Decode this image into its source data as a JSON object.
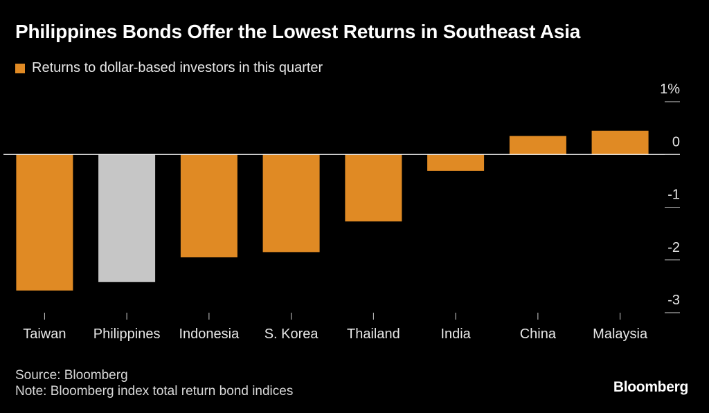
{
  "title": "Philippines Bonds Offer the Lowest Returns in Southeast Asia",
  "legend_label": "Returns to dollar-based investors in this quarter",
  "source": "Source: Bloomberg",
  "note": "Note: Bloomberg index total return bond indices",
  "logo": "Bloomberg",
  "colors": {
    "bar": "#e08a24",
    "highlight": "#c6c6c6",
    "axis": "#ffffff",
    "text": "#e6e6e6"
  },
  "chart_data": {
    "type": "bar",
    "title": "Philippines Bonds Offer the Lowest Returns in Southeast Asia",
    "xlabel": "",
    "ylabel": "",
    "categories": [
      "Taiwan",
      "Philippines",
      "Indonesia",
      "S. Korea",
      "Thailand",
      "India",
      "China",
      "Malaysia"
    ],
    "series": [
      {
        "name": "Returns to dollar-based investors in this quarter",
        "values": [
          -2.58,
          -2.42,
          -1.95,
          -1.85,
          -1.27,
          -0.31,
          0.35,
          0.45
        ]
      }
    ],
    "highlight": "Philippines",
    "ylim": [
      -3,
      1
    ],
    "yticks": [
      1,
      0,
      -1,
      -2,
      -3
    ],
    "ytick_labels": [
      "1%",
      "0",
      "-1",
      "-2",
      "-3"
    ],
    "axis_position": "right",
    "grid": false
  }
}
